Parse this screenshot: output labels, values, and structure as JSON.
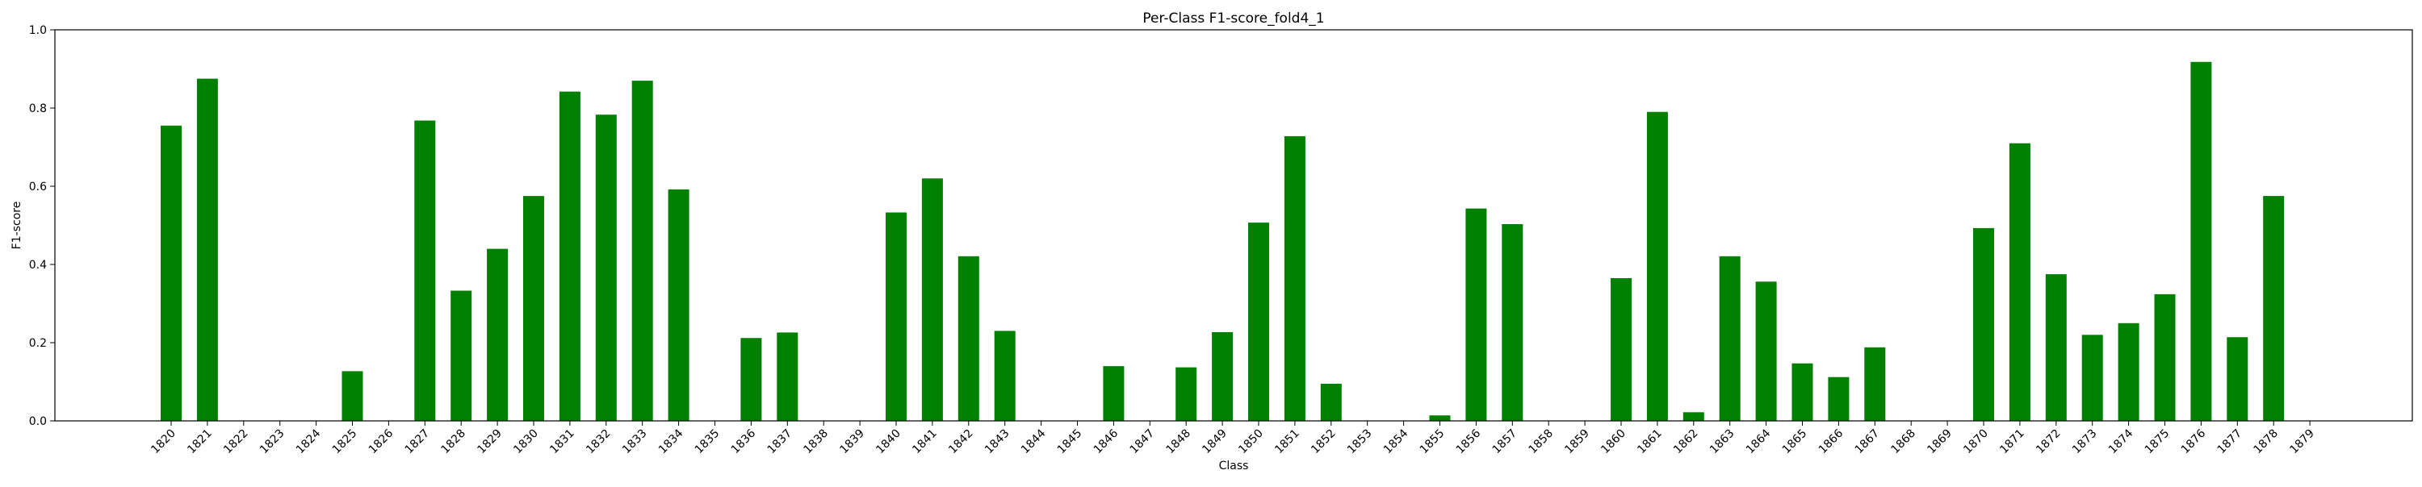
{
  "chart_data": {
    "type": "bar",
    "title": "Per-Class F1-score_fold4_1",
    "xlabel": "Class",
    "ylabel": "F1-score",
    "ylim": [
      0,
      1.0
    ],
    "yticks": [
      "0.0",
      "0.2",
      "0.4",
      "0.6",
      "0.8",
      "1.0"
    ],
    "grid": false,
    "legend": "none",
    "bar_color": "#008000",
    "categories": [
      "1820",
      "1821",
      "1822",
      "1823",
      "1824",
      "1825",
      "1826",
      "1827",
      "1828",
      "1829",
      "1830",
      "1831",
      "1832",
      "1833",
      "1834",
      "1835",
      "1836",
      "1837",
      "1838",
      "1839",
      "1840",
      "1841",
      "1842",
      "1843",
      "1844",
      "1845",
      "1846",
      "1847",
      "1848",
      "1849",
      "1850",
      "1851",
      "1852",
      "1853",
      "1854",
      "1855",
      "1856",
      "1857",
      "1858",
      "1859",
      "1860",
      "1861",
      "1862",
      "1863",
      "1864",
      "1865",
      "1866",
      "1867",
      "1868",
      "1869",
      "1870",
      "1871",
      "1872",
      "1873",
      "1874",
      "1875",
      "1876",
      "1877",
      "1878",
      "1879"
    ],
    "values": [
      0.755,
      0.875,
      0,
      0,
      0,
      0.127,
      0,
      0.768,
      0.333,
      0.44,
      0.575,
      0.842,
      0.783,
      0.87,
      0.592,
      0,
      0.212,
      0.226,
      0,
      0,
      0.533,
      0.62,
      0.421,
      0.23,
      0,
      0,
      0.14,
      0,
      0.137,
      0.227,
      0.507,
      0.728,
      0.095,
      0,
      0,
      0.014,
      0.543,
      0.503,
      0,
      0,
      0.365,
      0.79,
      0.022,
      0.421,
      0.356,
      0.147,
      0.112,
      0.188,
      0,
      0,
      0.493,
      0.71,
      0.375,
      0.22,
      0.25,
      0.324,
      0.918,
      0.214,
      0.575,
      0
    ]
  }
}
